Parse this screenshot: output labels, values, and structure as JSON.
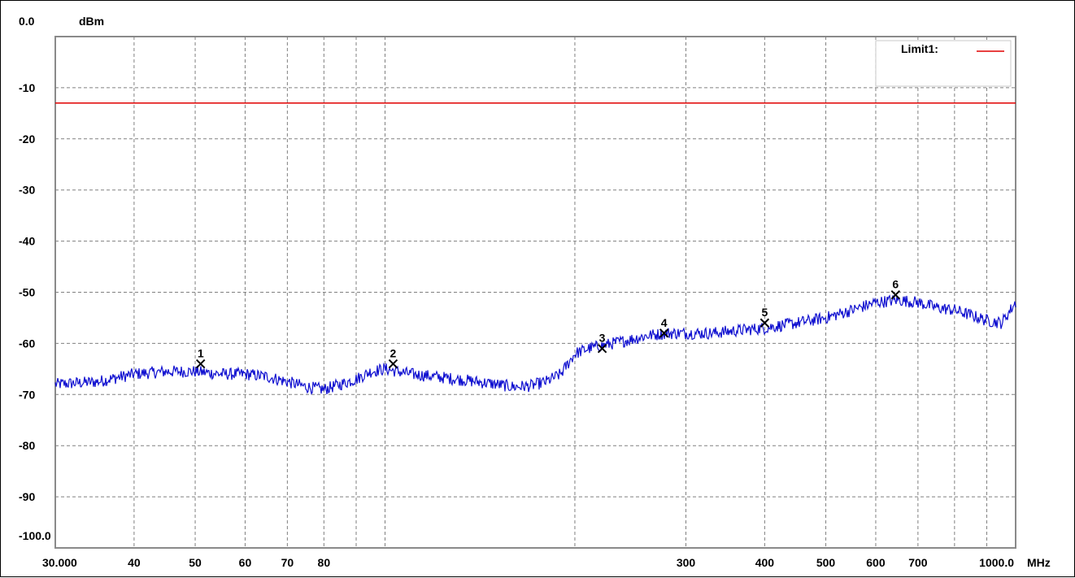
{
  "chart_data": {
    "type": "line",
    "title": "",
    "ylabel": "dBm",
    "xlabel": "MHz",
    "x_scale": "log",
    "xlim": [
      30,
      1000
    ],
    "ylim": [
      -100,
      0
    ],
    "grid": true,
    "y_tick_labels": [
      "0.0",
      "-10",
      "-20",
      "-30",
      "-40",
      "-50",
      "-60",
      "-70",
      "-80",
      "-90",
      "-100.0"
    ],
    "y_tick_values": [
      0,
      -10,
      -20,
      -30,
      -40,
      -50,
      -60,
      -70,
      -80,
      -90,
      -100
    ],
    "x_tick_labels": [
      "30.000",
      "40",
      "50",
      "60",
      "70",
      "80",
      "300",
      "400",
      "500",
      "600",
      "700",
      "1000.0"
    ],
    "x_tick_values": [
      30,
      40,
      50,
      60,
      70,
      80,
      300,
      400,
      500,
      600,
      700,
      1000
    ],
    "x_grid_values": [
      30,
      40,
      50,
      60,
      70,
      80,
      90,
      100,
      200,
      300,
      400,
      500,
      600,
      700,
      800,
      900,
      1000
    ],
    "legend": {
      "placement": "top-right",
      "entries": [
        {
          "name": "Limit1:",
          "color": "#e00000"
        }
      ]
    },
    "limit_line": {
      "name": "Limit1:",
      "y": -13,
      "color": "#e00000"
    },
    "series": [
      {
        "color": "#1010d0",
        "x": [
          30,
          35,
          40,
          45,
          50,
          55,
          60,
          65,
          70,
          75,
          80,
          85,
          90,
          95,
          100,
          110,
          120,
          130,
          140,
          150,
          160,
          170,
          180,
          190,
          200,
          210,
          220,
          240,
          260,
          280,
          300,
          330,
          360,
          400,
          450,
          500,
          550,
          600,
          650,
          700,
          750,
          800,
          850,
          900,
          950,
          1000
        ],
        "y": [
          -68,
          -67.5,
          -66,
          -65.5,
          -65.5,
          -66,
          -66,
          -66.5,
          -67.5,
          -68.5,
          -69,
          -68,
          -67,
          -65.5,
          -65,
          -66,
          -66.5,
          -67,
          -67.5,
          -68,
          -68.5,
          -68.3,
          -67.5,
          -66,
          -62,
          -61,
          -60.5,
          -59.5,
          -58.5,
          -58,
          -58,
          -58,
          -57.5,
          -57,
          -56,
          -55,
          -53.5,
          -52,
          -51.5,
          -52,
          -53,
          -53.5,
          -54.5,
          -55.5,
          -56,
          -52
        ]
      }
    ],
    "markers": [
      {
        "label": "1",
        "x": 51,
        "y": -64
      },
      {
        "label": "2",
        "x": 103,
        "y": -64
      },
      {
        "label": "3",
        "x": 221,
        "y": -61
      },
      {
        "label": "4",
        "x": 277,
        "y": -58
      },
      {
        "label": "5",
        "x": 400,
        "y": -56
      },
      {
        "label": "6",
        "x": 645,
        "y": -50.5
      }
    ],
    "noise_amplitude_db": 1.2
  }
}
